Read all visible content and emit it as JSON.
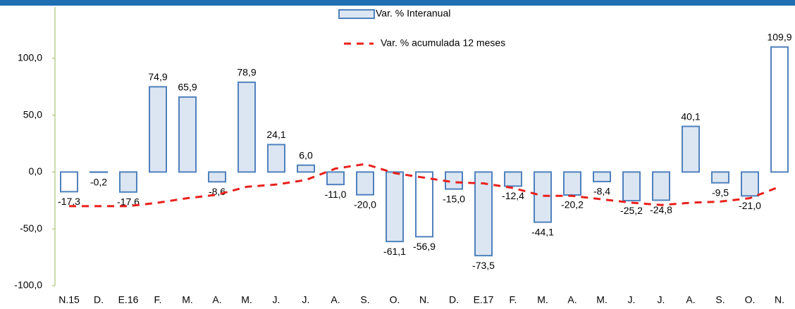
{
  "chart_data": {
    "type": "bar",
    "categories": [
      "N.15",
      "D.",
      "E.16",
      "F.",
      "M.",
      "A.",
      "M.",
      "J.",
      "J.",
      "A.",
      "S.",
      "O.",
      "N.",
      "D.",
      "E.17",
      "F.",
      "M.",
      "A.",
      "M.",
      "J.",
      "J.",
      "A.",
      "S.",
      "O.",
      "N."
    ],
    "series": [
      {
        "name": "Var. % Interanual",
        "type": "bar",
        "color": "#dce6f2",
        "edge_color": "#4f81bd",
        "colors": [
          "#ffffff",
          "#ffffff",
          "#dce6f2",
          "#dce6f2",
          "#dce6f2",
          "#dce6f2",
          "#dce6f2",
          "#dce6f2",
          "#dce6f2",
          "#dce6f2",
          "#dce6f2",
          "#dce6f2",
          "#ffffff",
          "#dce6f2",
          "#dce6f2",
          "#dce6f2",
          "#dce6f2",
          "#dce6f2",
          "#dce6f2",
          "#dce6f2",
          "#dce6f2",
          "#dce6f2",
          "#dce6f2",
          "#dce6f2",
          "#ffffff"
        ],
        "values": [
          -17.3,
          -0.2,
          -17.6,
          74.9,
          65.9,
          -8.6,
          78.9,
          24.1,
          6.0,
          -11.0,
          -20.0,
          -61.1,
          -56.9,
          -15.0,
          -73.5,
          -12.4,
          -44.1,
          -20.2,
          -8.4,
          -25.2,
          -24.8,
          40.1,
          -9.5,
          -21.0,
          109.9
        ],
        "value_labels": [
          "-17,3",
          "-0,2",
          "-17,6",
          "74,9",
          "65,9",
          "-8,6",
          "78,9",
          "24,1",
          "6,0",
          "-11,0",
          "-20,0",
          "-61,1",
          "-56,9",
          "-15,0",
          "-73,5",
          "-12,4",
          "-44,1",
          "-20,2",
          "-8,4",
          "-25,2",
          "-24,8",
          "40,1",
          "-9,5",
          "-21,0",
          "109,9"
        ]
      },
      {
        "name": "Var. % acumulada 12 meses",
        "type": "line",
        "color": "#e8201c",
        "dashed": true,
        "values": [
          -30,
          -30,
          -30,
          -27,
          -23,
          -20,
          -13,
          -11,
          -7,
          3,
          7,
          -1,
          -5,
          -9,
          -10,
          -14,
          -21,
          -21,
          -24,
          -27,
          -29,
          -27,
          -26,
          -23,
          -13
        ]
      }
    ],
    "ylim": [
      -100,
      145
    ],
    "yticks": [
      {
        "value": -100,
        "label": "-100,0"
      },
      {
        "value": -50,
        "label": "-50,0"
      },
      {
        "value": 0,
        "label": "0,0"
      },
      {
        "value": 50,
        "label": "50,0"
      },
      {
        "value": 100,
        "label": "100,0"
      }
    ],
    "grid": false
  }
}
